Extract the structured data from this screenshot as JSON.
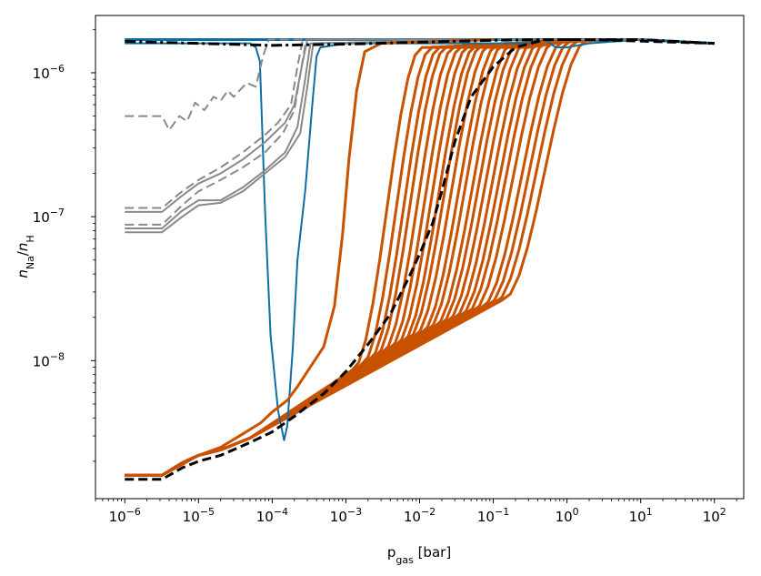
{
  "chart_data": {
    "type": "line",
    "x_scale": "log",
    "y_scale": "log",
    "xlim": [
      4e-07,
      250
    ],
    "ylim": [
      1.1e-09,
      2.5e-06
    ],
    "xlabel": {
      "main": "p",
      "sub": "gas",
      "tail": " [bar]"
    },
    "ylabel": {
      "n1": "n",
      "s1": "Na",
      "slash": "/",
      "n2": "n",
      "s2": "H"
    },
    "x_ticks": [
      {
        "value": 1e-06,
        "base": "10",
        "exp": "−6"
      },
      {
        "value": 1e-05,
        "base": "10",
        "exp": "−5"
      },
      {
        "value": 0.0001,
        "base": "10",
        "exp": "−4"
      },
      {
        "value": 0.001,
        "base": "10",
        "exp": "−3"
      },
      {
        "value": 0.01,
        "base": "10",
        "exp": "−2"
      },
      {
        "value": 0.1,
        "base": "10",
        "exp": "−1"
      },
      {
        "value": 1,
        "base": "10",
        "exp": "0"
      },
      {
        "value": 10,
        "base": "10",
        "exp": "1"
      },
      {
        "value": 100,
        "base": "10",
        "exp": "2"
      }
    ],
    "y_ticks": [
      {
        "value": 1e-08,
        "base": "10",
        "exp": "−8"
      },
      {
        "value": 1e-07,
        "base": "10",
        "exp": "−7"
      },
      {
        "value": 1e-06,
        "base": "10",
        "exp": "−6"
      }
    ],
    "grid": false,
    "colors": {
      "blue": "#0d6fa3",
      "orange": "#c85200",
      "gray": "#898989",
      "black": "#000000"
    },
    "orange_family": {
      "x_starts": [
        0.0012,
        0.0016,
        0.002,
        0.0024,
        0.003,
        0.0037,
        0.0045,
        0.0055,
        0.0065,
        0.008,
        0.01,
        0.012,
        0.015,
        0.018,
        0.022,
        0.027,
        0.033,
        0.04,
        0.05,
        0.065,
        0.08,
        0.1,
        0.13
      ],
      "sat_start": 1.5e-06,
      "sat_end": 1.7e-06
    },
    "series": [
      {
        "color": "blue",
        "style": "solid",
        "width": 2,
        "points": [
          [
            1e-06,
            1.6e-06
          ],
          [
            5e-05,
            1.6e-06
          ],
          [
            6e-05,
            1.5e-06
          ],
          [
            6.8e-05,
            1.2e-06
          ],
          [
            8e-05,
            1.1e-07
          ],
          [
            9.5e-05,
            1.5e-08
          ],
          [
            0.00012,
            4.5e-09
          ],
          [
            0.000145,
            2.8e-09
          ],
          [
            0.00016,
            3.5e-09
          ],
          [
            0.00019,
            1.2e-08
          ],
          [
            0.00022,
            5e-08
          ],
          [
            0.00028,
            1.5e-07
          ],
          [
            0.00035,
            6e-07
          ],
          [
            0.0004,
            1.3e-06
          ],
          [
            0.00045,
            1.5e-06
          ],
          [
            0.001,
            1.6e-06
          ],
          [
            0.3,
            1.6e-06
          ],
          [
            0.5,
            1.7e-06
          ],
          [
            0.7,
            1.5e-06
          ],
          [
            1,
            1.5e-06
          ],
          [
            2,
            1.6e-06
          ],
          [
            10,
            1.7e-06
          ],
          [
            100,
            1.6e-06
          ]
        ]
      },
      {
        "color": "blue",
        "style": "solid",
        "width": 3,
        "points": [
          [
            1e-06,
            1.7e-06
          ],
          [
            1,
            1.7e-06
          ],
          [
            10,
            1.7e-06
          ],
          [
            100,
            1.6e-06
          ]
        ]
      },
      {
        "color": "gray",
        "style": "dashed",
        "width": 2,
        "points": [
          [
            1e-06,
            5e-07
          ],
          [
            3.2e-06,
            5e-07
          ],
          [
            4e-06,
            4e-07
          ],
          [
            5.5e-06,
            5e-07
          ],
          [
            7e-06,
            4.6e-07
          ],
          [
            9e-06,
            6.2e-07
          ],
          [
            1.2e-05,
            5.5e-07
          ],
          [
            1.6e-05,
            6.8e-07
          ],
          [
            2e-05,
            6.4e-07
          ],
          [
            2.5e-05,
            7.5e-07
          ],
          [
            3e-05,
            6.8e-07
          ],
          [
            4.5e-05,
            8.5e-07
          ],
          [
            6e-05,
            8e-07
          ],
          [
            7.5e-05,
            1.3e-06
          ],
          [
            9e-05,
            1.7e-06
          ],
          [
            1,
            1.7e-06
          ],
          [
            10,
            1.7e-06
          ]
        ]
      },
      {
        "color": "gray",
        "style": "dashed",
        "width": 2,
        "points": [
          [
            1e-06,
            1.15e-07
          ],
          [
            3.2e-06,
            1.15e-07
          ],
          [
            6e-06,
            1.5e-07
          ],
          [
            1e-05,
            1.8e-07
          ],
          [
            2e-05,
            2.2e-07
          ],
          [
            4e-05,
            2.8e-07
          ],
          [
            8e-05,
            3.7e-07
          ],
          [
            0.00012,
            4.5e-07
          ],
          [
            0.00018,
            6e-07
          ],
          [
            0.00022,
            1.1e-06
          ],
          [
            0.00026,
            1.7e-06
          ],
          [
            0.1,
            1.7e-06
          ]
        ]
      },
      {
        "color": "gray",
        "style": "dashed",
        "width": 2,
        "points": [
          [
            1e-06,
            8.8e-08
          ],
          [
            3.2e-06,
            8.8e-08
          ],
          [
            6e-06,
            1.2e-07
          ],
          [
            1e-05,
            1.5e-07
          ],
          [
            2e-05,
            1.8e-07
          ],
          [
            4e-05,
            2.2e-07
          ],
          [
            8e-05,
            2.8e-07
          ],
          [
            0.00014,
            3.8e-07
          ],
          [
            0.0002,
            5.5e-07
          ],
          [
            0.00025,
            1.1e-06
          ],
          [
            0.00029,
            1.7e-06
          ],
          [
            0.1,
            1.7e-06
          ]
        ]
      },
      {
        "color": "gray",
        "style": "solid",
        "width": 2,
        "points": [
          [
            1e-06,
            1.08e-07
          ],
          [
            3.2e-06,
            1.08e-07
          ],
          [
            6e-06,
            1.4e-07
          ],
          [
            1e-05,
            1.7e-07
          ],
          [
            2e-05,
            2e-07
          ],
          [
            4e-05,
            2.5e-07
          ],
          [
            8e-05,
            3.3e-07
          ],
          [
            0.00015,
            4.5e-07
          ],
          [
            0.0002,
            6e-07
          ],
          [
            0.00026,
            1.2e-06
          ],
          [
            0.0003,
            1.7e-06
          ],
          [
            0.1,
            1.7e-06
          ]
        ]
      },
      {
        "color": "gray",
        "style": "solid",
        "width": 2,
        "points": [
          [
            1e-06,
            8.3e-08
          ],
          [
            3.2e-06,
            8.3e-08
          ],
          [
            6e-06,
            1.1e-07
          ],
          [
            1e-05,
            1.3e-07
          ],
          [
            2e-05,
            1.3e-07
          ],
          [
            4e-05,
            1.6e-07
          ],
          [
            8e-05,
            2.1e-07
          ],
          [
            0.00015,
            2.8e-07
          ],
          [
            0.00022,
            4.2e-07
          ],
          [
            0.00028,
            9e-07
          ],
          [
            0.00033,
            1.6e-06
          ],
          [
            0.1,
            1.7e-06
          ]
        ]
      },
      {
        "color": "gray",
        "style": "solid",
        "width": 2,
        "points": [
          [
            1e-06,
            7.8e-08
          ],
          [
            3.2e-06,
            7.8e-08
          ],
          [
            6e-06,
            1e-07
          ],
          [
            1e-05,
            1.2e-07
          ],
          [
            2e-05,
            1.25e-07
          ],
          [
            4e-05,
            1.5e-07
          ],
          [
            8e-05,
            2e-07
          ],
          [
            0.00015,
            2.6e-07
          ],
          [
            0.00024,
            3.8e-07
          ],
          [
            0.0003,
            8e-07
          ],
          [
            0.00036,
            1.6e-06
          ],
          [
            0.1,
            1.7e-06
          ]
        ]
      },
      {
        "color": "orange",
        "style": "solid",
        "width": 3,
        "points": [
          [
            1e-06,
            1.6e-09
          ],
          [
            3.2e-06,
            1.6e-09
          ],
          [
            6e-06,
            1.9e-09
          ],
          [
            1e-05,
            2.2e-09
          ],
          [
            2e-05,
            2.5e-09
          ],
          [
            4e-05,
            3.1e-09
          ],
          [
            7e-05,
            3.7e-09
          ],
          [
            0.0001,
            4.4e-09
          ],
          [
            0.00016,
            5.3e-09
          ],
          [
            0.00022,
            6.6e-09
          ],
          [
            0.0003,
            8.4e-09
          ],
          [
            0.0005,
            1.25e-08
          ],
          [
            0.0007,
            2.4e-08
          ],
          [
            0.0009,
            7.5e-08
          ],
          [
            0.0011,
            2.5e-07
          ],
          [
            0.0014,
            7.5e-07
          ],
          [
            0.0018,
            1.4e-06
          ],
          [
            0.003,
            1.6e-06
          ],
          [
            0.1,
            1.7e-06
          ]
        ]
      },
      {
        "color": "black",
        "style": "dashed",
        "width": 3,
        "points": [
          [
            1e-06,
            1.5e-09
          ],
          [
            3.2e-06,
            1.5e-09
          ],
          [
            6e-06,
            1.8e-09
          ],
          [
            1e-05,
            2e-09
          ],
          [
            2e-05,
            2.2e-09
          ],
          [
            5e-05,
            2.7e-09
          ],
          [
            0.0001,
            3.2e-09
          ],
          [
            0.0002,
            4.1e-09
          ],
          [
            0.0005,
            5.9e-09
          ],
          [
            0.001,
            8.4e-09
          ],
          [
            0.002,
            1.3e-08
          ],
          [
            0.004,
            2.1e-08
          ],
          [
            0.007,
            3.7e-08
          ],
          [
            0.01,
            5.5e-08
          ],
          [
            0.015,
            9e-08
          ],
          [
            0.02,
            1.5e-07
          ],
          [
            0.03,
            3.3e-07
          ],
          [
            0.05,
            6.8e-07
          ],
          [
            0.1,
            1.1e-06
          ],
          [
            0.2,
            1.5e-06
          ],
          [
            0.5,
            1.7e-06
          ],
          [
            2,
            1.7e-06
          ],
          [
            100,
            1.6e-06
          ]
        ]
      },
      {
        "color": "black",
        "style": "dashdot",
        "width": 3,
        "points": [
          [
            1e-06,
            1.65e-06
          ],
          [
            1e-05,
            1.6e-06
          ],
          [
            0.0001,
            1.55e-06
          ],
          [
            0.001,
            1.58e-06
          ],
          [
            0.01,
            1.63e-06
          ],
          [
            0.1,
            1.68e-06
          ],
          [
            0.5,
            1.7e-06
          ],
          [
            10,
            1.7e-06
          ],
          [
            100,
            1.6e-06
          ]
        ]
      }
    ]
  }
}
